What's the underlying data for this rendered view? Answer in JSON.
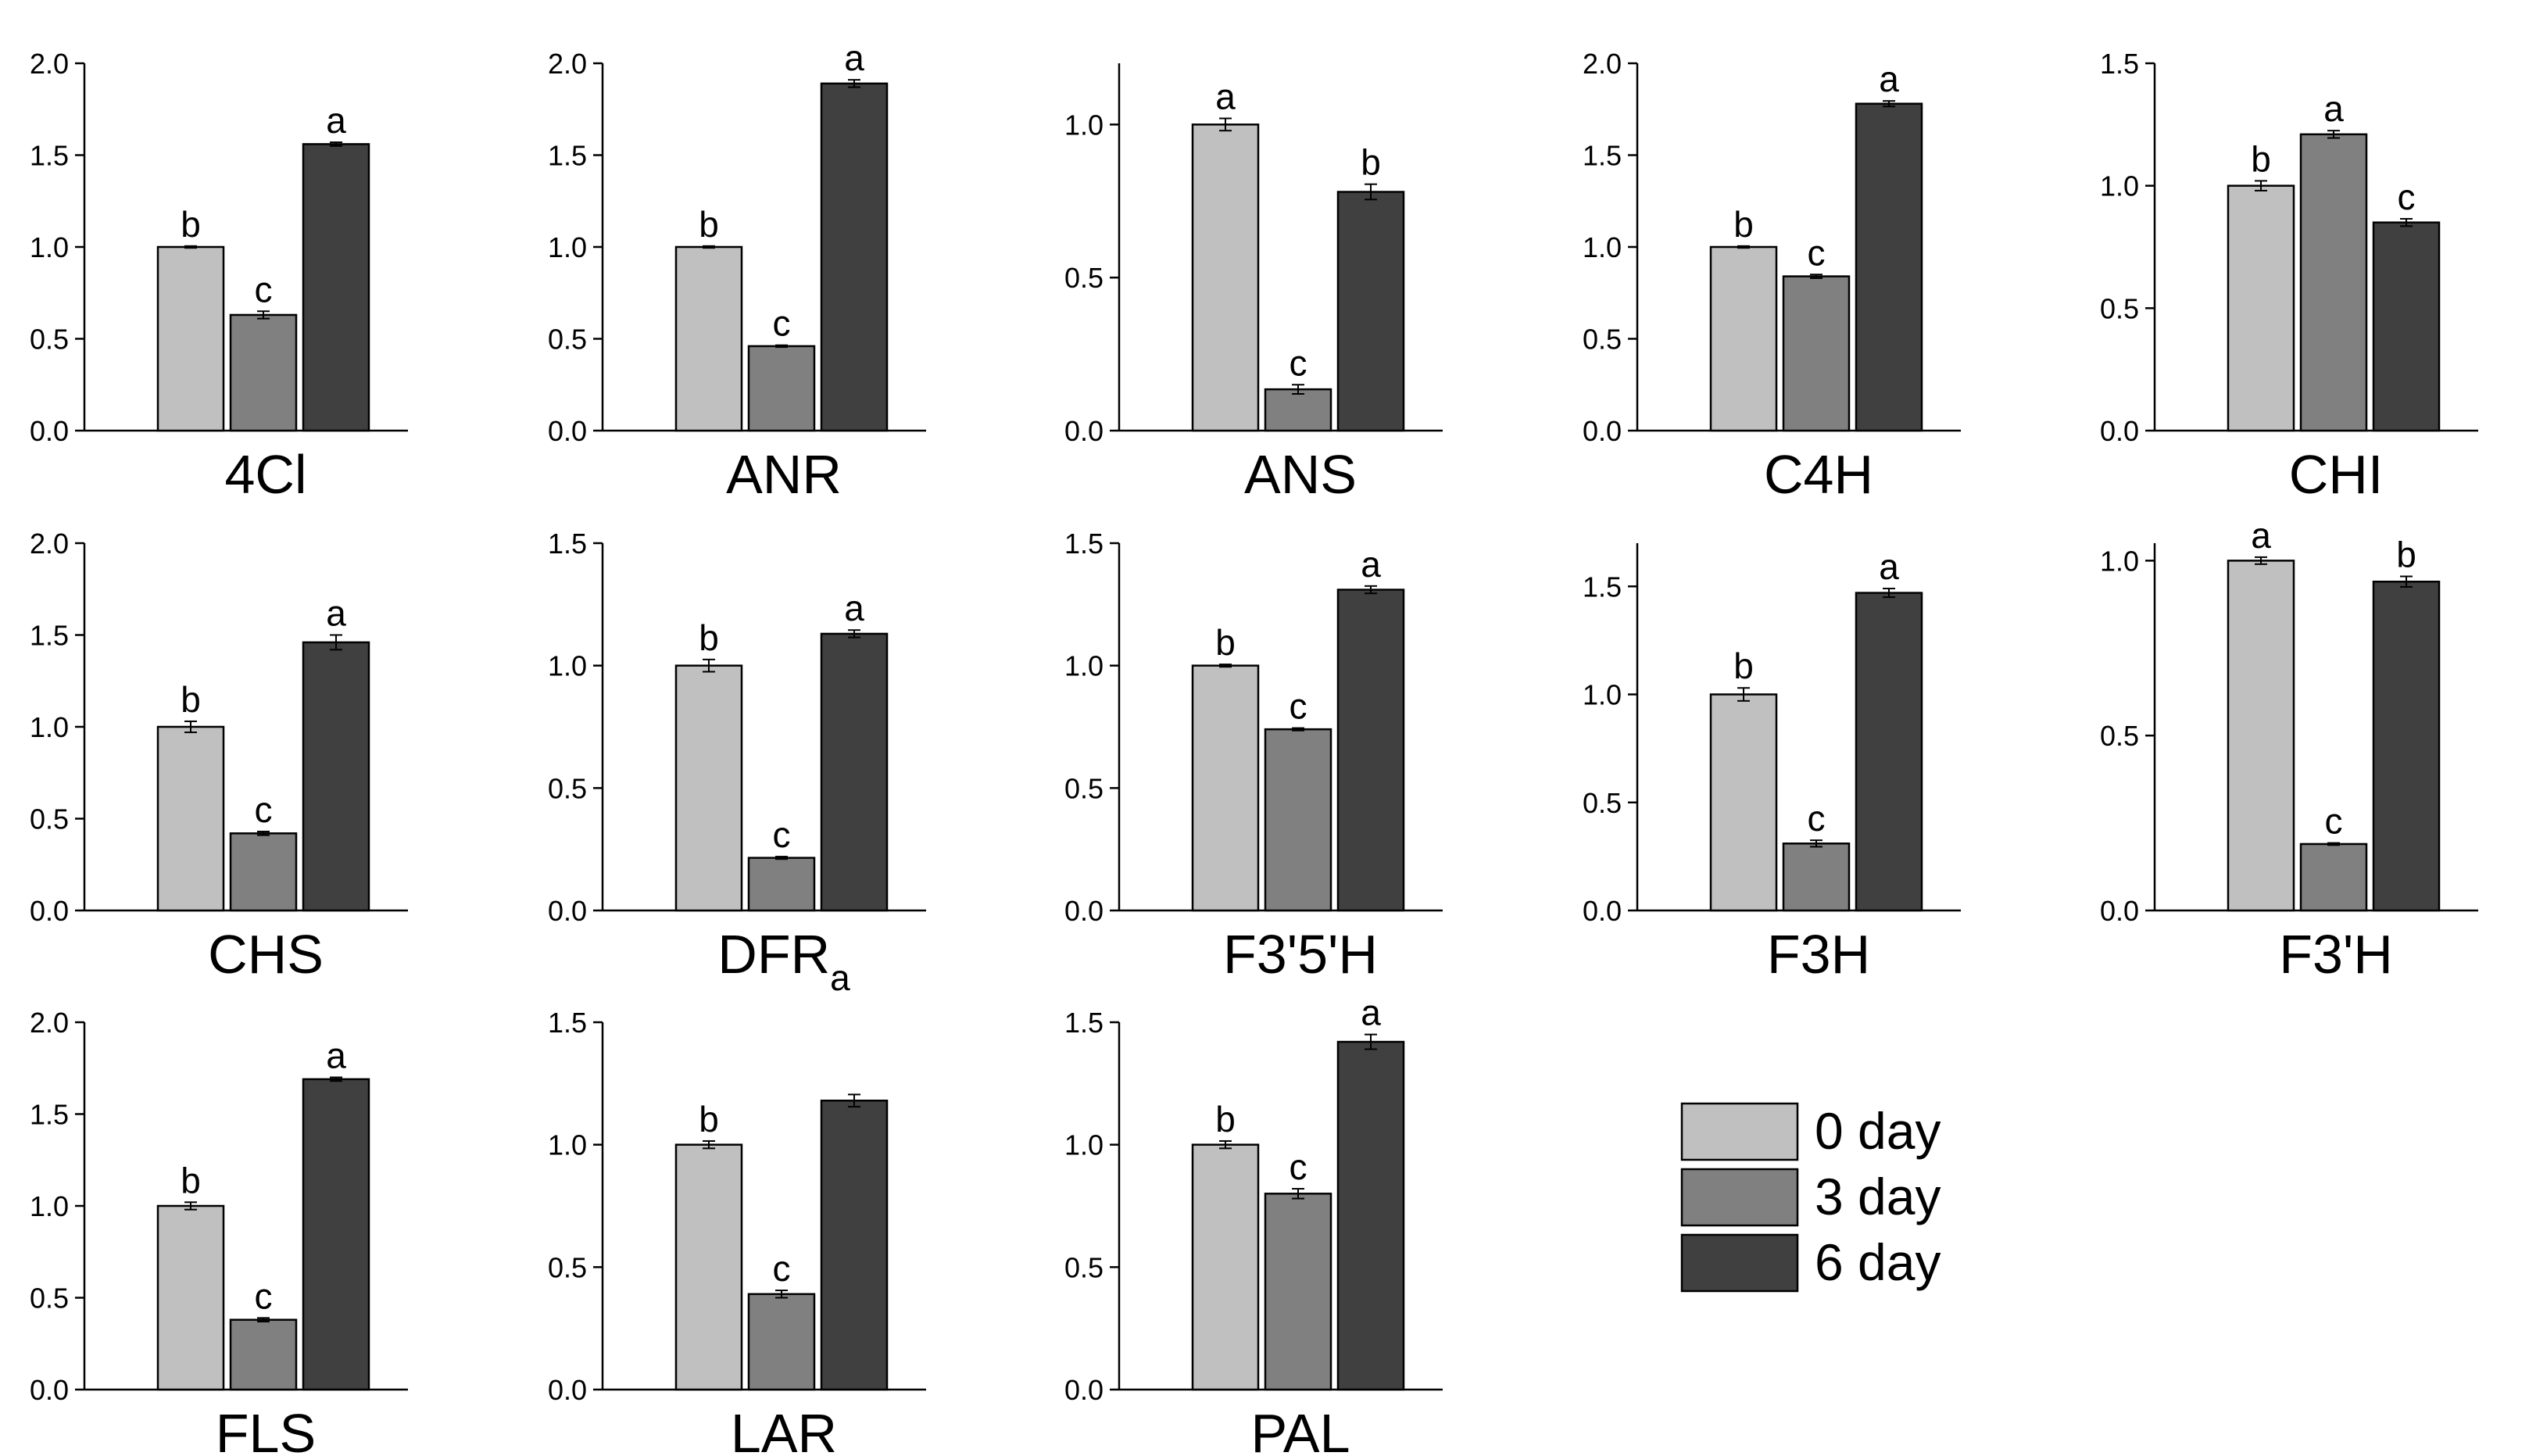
{
  "chart_data": {
    "type": "bar",
    "layout": "small-multiples",
    "series_names": [
      "0 day",
      "3 day",
      "6 day"
    ],
    "colors": {
      "0 day": "#c0c0c0",
      "3 day": "#808080",
      "6 day": "#404040",
      "axis": "#000000"
    },
    "panels": [
      {
        "gene": "4Cl",
        "ylim": [
          0,
          2.0
        ],
        "ticks": [
          "0.0",
          "0.5",
          "1.0",
          "1.5",
          "2.0"
        ],
        "values": [
          1.0,
          0.63,
          1.56
        ],
        "errors": [
          0.005,
          0.02,
          0.01
        ],
        "letters": [
          "b",
          "c",
          "a"
        ]
      },
      {
        "gene": "ANR",
        "ylim": [
          0,
          2.0
        ],
        "ticks": [
          "0.0",
          "0.5",
          "1.0",
          "1.5",
          "2.0"
        ],
        "values": [
          1.0,
          0.46,
          1.89
        ],
        "errors": [
          0.005,
          0.005,
          0.02
        ],
        "letters": [
          "b",
          "c",
          "a"
        ]
      },
      {
        "gene": "ANS",
        "ylim": [
          0,
          1.2
        ],
        "ticks": [
          "0.0",
          "0.5",
          "1.0"
        ],
        "values": [
          1.0,
          0.135,
          0.78
        ],
        "errors": [
          0.02,
          0.015,
          0.025
        ],
        "letters": [
          "a",
          "c",
          "b"
        ]
      },
      {
        "gene": "C4H",
        "ylim": [
          0,
          2.0
        ],
        "ticks": [
          "0.0",
          "0.5",
          "1.0",
          "1.5",
          "2.0"
        ],
        "values": [
          1.0,
          0.84,
          1.78
        ],
        "errors": [
          0.005,
          0.01,
          0.015
        ],
        "letters": [
          "b",
          "c",
          "a"
        ]
      },
      {
        "gene": "CHI",
        "ylim": [
          0,
          1.5
        ],
        "ticks": [
          "0.0",
          "0.5",
          "1.0",
          "1.5"
        ],
        "values": [
          1.0,
          1.21,
          0.85
        ],
        "errors": [
          0.02,
          0.015,
          0.015
        ],
        "letters": [
          "b",
          "a",
          "c"
        ]
      },
      {
        "gene": "CHS",
        "ylim": [
          0,
          2.0
        ],
        "ticks": [
          "0.0",
          "0.5",
          "1.0",
          "1.5",
          "2.0"
        ],
        "values": [
          1.0,
          0.42,
          1.46
        ],
        "errors": [
          0.03,
          0.01,
          0.04
        ],
        "letters": [
          "b",
          "c",
          "a"
        ]
      },
      {
        "gene": "DFR",
        "gene_sub": "a",
        "ylim": [
          0,
          1.5
        ],
        "ticks": [
          "0.0",
          "0.5",
          "1.0",
          "1.5"
        ],
        "values": [
          1.0,
          0.215,
          1.13
        ],
        "errors": [
          0.025,
          0.005,
          0.015
        ],
        "letters": [
          "b",
          "c",
          "a"
        ]
      },
      {
        "gene": "F3'5'H",
        "ylim": [
          0,
          1.5
        ],
        "ticks": [
          "0.0",
          "0.5",
          "1.0",
          "1.5"
        ],
        "values": [
          1.0,
          0.74,
          1.31
        ],
        "errors": [
          0.005,
          0.005,
          0.015
        ],
        "letters": [
          "b",
          "c",
          "a"
        ]
      },
      {
        "gene": "F3H",
        "ylim": [
          0,
          1.7
        ],
        "ticks": [
          "0.0",
          "0.5",
          "1.0",
          "1.5"
        ],
        "values": [
          1.0,
          0.31,
          1.47
        ],
        "errors": [
          0.03,
          0.015,
          0.02
        ],
        "letters": [
          "b",
          "c",
          "a"
        ]
      },
      {
        "gene": "F3'H",
        "ylim": [
          0,
          1.05
        ],
        "ticks": [
          "0.0",
          "0.5",
          "1.0"
        ],
        "values": [
          1.0,
          0.19,
          0.94
        ],
        "errors": [
          0.01,
          0.003,
          0.015
        ],
        "letters": [
          "a",
          "c",
          "b"
        ]
      },
      {
        "gene": "FLS",
        "ylim": [
          0,
          2.0
        ],
        "ticks": [
          "0.0",
          "0.5",
          "1.0",
          "1.5",
          "2.0"
        ],
        "values": [
          1.0,
          0.38,
          1.69
        ],
        "errors": [
          0.02,
          0.01,
          0.01
        ],
        "letters": [
          "b",
          "c",
          "a"
        ]
      },
      {
        "gene": "LAR",
        "ylim": [
          0,
          1.5
        ],
        "ticks": [
          "0.0",
          "0.5",
          "1.0",
          "1.5"
        ],
        "values": [
          1.0,
          0.39,
          1.18
        ],
        "errors": [
          0.015,
          0.015,
          0.025
        ],
        "letters": [
          "b",
          "c",
          ""
        ]
      },
      {
        "gene": "PAL",
        "ylim": [
          0,
          1.5
        ],
        "ticks": [
          "0.0",
          "0.5",
          "1.0",
          "1.5"
        ],
        "values": [
          1.0,
          0.8,
          1.42
        ],
        "errors": [
          0.015,
          0.02,
          0.03
        ],
        "letters": [
          "b",
          "c",
          "a"
        ]
      }
    ],
    "legend": {
      "entries": [
        "0 day",
        "3 day",
        "6 day"
      ],
      "placement": "bottom-right"
    }
  }
}
